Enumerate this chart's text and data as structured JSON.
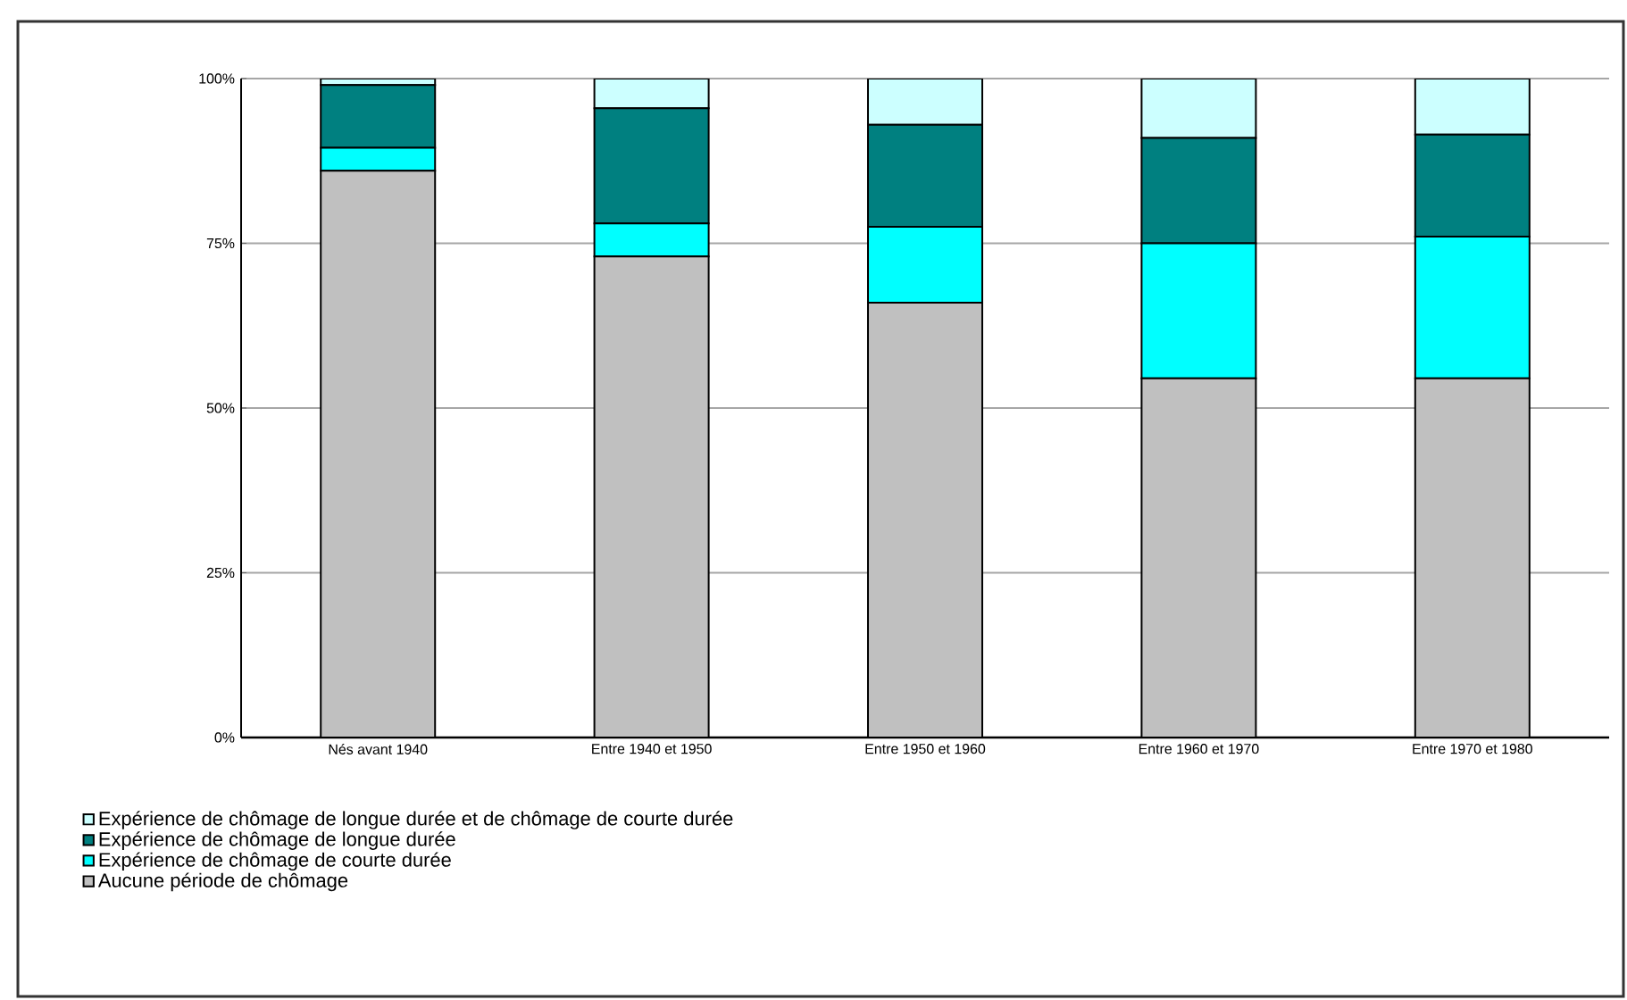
{
  "chart_data": {
    "type": "bar",
    "stacked": true,
    "categories": [
      "Nés avant 1940",
      "Entre 1940 et 1950",
      "Entre 1950 et 1960",
      "Entre 1960 et 1970",
      "Entre 1970 et 1980"
    ],
    "series": [
      {
        "name": "Aucune période de chômage",
        "color": "#c0c0c0",
        "values": [
          86,
          73,
          66,
          54.5,
          54.5
        ]
      },
      {
        "name": "Expérience de chômage de courte durée",
        "color": "#00ffff",
        "values": [
          3.5,
          5,
          11.5,
          20.5,
          21.5
        ]
      },
      {
        "name": "Expérience de chômage de longue durée",
        "color": "#008080",
        "values": [
          9.5,
          17.5,
          15.5,
          16,
          15.5
        ]
      },
      {
        "name": "Expérience de chômage de longue durée et de chômage de courte durée",
        "color": "#ccffff",
        "values": [
          1,
          4.5,
          7,
          9,
          8.5
        ]
      }
    ],
    "ylim": [
      0,
      100
    ],
    "yticks": [
      {
        "value": 0,
        "label": "0%"
      },
      {
        "value": 25,
        "label": "25%"
      },
      {
        "value": 50,
        "label": "50%"
      },
      {
        "value": 75,
        "label": "75%"
      },
      {
        "value": 100,
        "label": "100%"
      }
    ],
    "grid": "y",
    "legend": "bottom"
  }
}
